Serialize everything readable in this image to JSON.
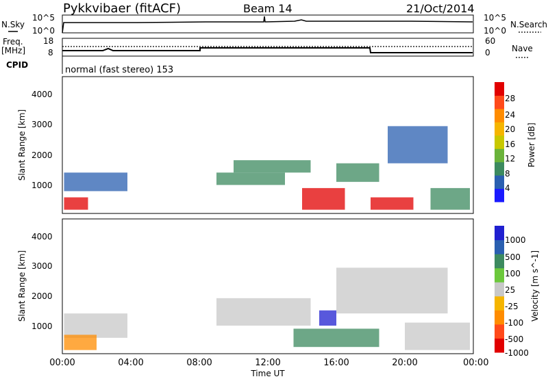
{
  "header": {
    "title": "Pykkvibaer (fitACF)",
    "beam": "Beam 14",
    "date": "21/Oct/2014"
  },
  "nsky_panel": {
    "left_label": "N.Sky",
    "left_ticks": [
      "10^5",
      "10^0"
    ],
    "right_label": "N.Search",
    "right_ticks": [
      "10^5",
      "10^0"
    ]
  },
  "freq_panel": {
    "left_label_1": "Freq.",
    "left_label_2": "[MHz]",
    "left_ticks": [
      "18",
      "8"
    ],
    "right_label": "Nave",
    "right_ticks": [
      "60",
      "0"
    ]
  },
  "cpid": {
    "label": "CPID",
    "text": "normal (fast stereo) 153"
  },
  "axes": {
    "ylabel": "Slant Range [km]",
    "xlabel": "Time UT",
    "x_ticks": [
      "00:00",
      "04:00",
      "08:00",
      "12:00",
      "16:00",
      "20:00",
      "00:00"
    ],
    "y_ticks": [
      "4000",
      "3000",
      "2000",
      "1000"
    ]
  },
  "power_colorbar": {
    "label": "Power [dB]",
    "ticks": [
      "28",
      "24",
      "20",
      "16",
      "12",
      "8",
      "4"
    ],
    "colors": [
      "#e10000",
      "#ff4a1a",
      "#ff8c00",
      "#f5b500",
      "#c8c800",
      "#6ab33a",
      "#3c8a5f",
      "#2a5fb0",
      "#1a1aff"
    ]
  },
  "velocity_colorbar": {
    "label": "Velocity [m s^-1]",
    "ticks": [
      "1000",
      "500",
      "100",
      "25",
      "-25",
      "-100",
      "-500",
      "-1000"
    ],
    "colors": [
      "#2020d0",
      "#2a5fb0",
      "#3c8a5f",
      "#6cc83c",
      "#c8c8c8",
      "#f5b500",
      "#ff8c00",
      "#ff4a1a",
      "#e10000"
    ]
  },
  "chart_data": {
    "type": "heatmap",
    "x_range_hours": [
      0,
      24
    ],
    "y_range_km": [
      180,
      4600
    ],
    "power_panel": [
      {
        "t0": 0.1,
        "t1": 3.8,
        "r0": 900,
        "r1": 1500,
        "level": "low"
      },
      {
        "t0": 0.1,
        "t1": 1.5,
        "r0": 300,
        "r1": 700,
        "level": "high"
      },
      {
        "t0": 9.0,
        "t1": 13.0,
        "r0": 1100,
        "r1": 1500,
        "level": "mid"
      },
      {
        "t0": 10.0,
        "t1": 14.5,
        "r0": 1500,
        "r1": 1900,
        "level": "mid"
      },
      {
        "t0": 14.0,
        "t1": 16.5,
        "r0": 300,
        "r1": 1000,
        "level": "high"
      },
      {
        "t0": 16.0,
        "t1": 18.5,
        "r0": 1200,
        "r1": 1800,
        "level": "mid"
      },
      {
        "t0": 18.0,
        "t1": 20.5,
        "r0": 300,
        "r1": 700,
        "level": "high"
      },
      {
        "t0": 19.0,
        "t1": 22.5,
        "r0": 1800,
        "r1": 3000,
        "level": "low"
      },
      {
        "t0": 21.5,
        "t1": 23.8,
        "r0": 300,
        "r1": 1000,
        "level": "mid"
      }
    ],
    "velocity_panel": [
      {
        "t0": 0.1,
        "t1": 3.8,
        "r0": 700,
        "r1": 1500,
        "level": "neutral"
      },
      {
        "t0": 0.1,
        "t1": 2.0,
        "r0": 300,
        "r1": 800,
        "level": "negative"
      },
      {
        "t0": 9.0,
        "t1": 14.5,
        "r0": 1100,
        "r1": 2000,
        "level": "neutral"
      },
      {
        "t0": 13.5,
        "t1": 18.5,
        "r0": 400,
        "r1": 1000,
        "level": "positive"
      },
      {
        "t0": 15.0,
        "t1": 16.0,
        "r0": 1100,
        "r1": 1600,
        "level": "strong-positive"
      },
      {
        "t0": 16.0,
        "t1": 22.5,
        "r0": 1500,
        "r1": 3000,
        "level": "neutral"
      },
      {
        "t0": 20.0,
        "t1": 23.8,
        "r0": 300,
        "r1": 1200,
        "level": "neutral"
      }
    ]
  }
}
